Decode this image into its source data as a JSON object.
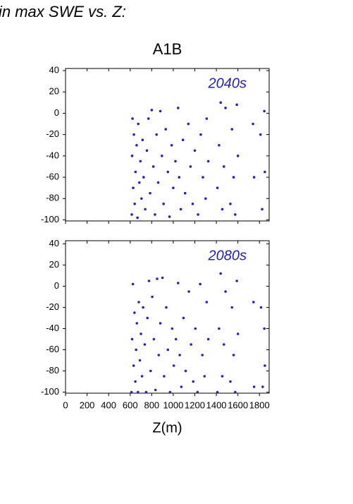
{
  "page_title": "in max SWE vs. Z:",
  "chart_data": [
    {
      "type": "scatter",
      "title": "A1B",
      "annotation": "2040s",
      "color": "#2222bb",
      "xlim": [
        0,
        1890
      ],
      "ylim": [
        -101,
        42
      ],
      "yticks": [
        -100,
        -80,
        -60,
        -40,
        -20,
        0,
        20,
        40
      ],
      "x": [
        615,
        618,
        622,
        628,
        635,
        642,
        650,
        660,
        668,
        675,
        685,
        695,
        705,
        715,
        725,
        740,
        755,
        770,
        785,
        800,
        815,
        830,
        845,
        860,
        880,
        895,
        910,
        930,
        950,
        965,
        985,
        1000,
        1020,
        1045,
        1055,
        1070,
        1090,
        1110,
        1140,
        1160,
        1180,
        1200,
        1230,
        1255,
        1275,
        1300,
        1310,
        1325,
        1410,
        1425,
        1440,
        1455,
        1470,
        1485,
        1530,
        1545,
        1560,
        1575,
        1590,
        1600,
        1740,
        1750,
        1810,
        1825,
        1845,
        1850
      ],
      "y": [
        -95,
        -40,
        -5,
        -70,
        -20,
        -85,
        -55,
        -30,
        -98,
        -10,
        -65,
        -45,
        -80,
        -25,
        -60,
        -90,
        -35,
        -5,
        -75,
        3,
        -50,
        -95,
        -20,
        -65,
        2,
        -40,
        -85,
        -15,
        -55,
        -97,
        -30,
        -70,
        -45,
        5,
        -60,
        -90,
        -25,
        -75,
        -10,
        -50,
        -85,
        -35,
        -95,
        -20,
        -60,
        -80,
        -5,
        -45,
        -70,
        -30,
        10,
        -90,
        -50,
        5,
        -85,
        -15,
        -60,
        -95,
        8,
        -40,
        -10,
        -60,
        -20,
        -90,
        2,
        -55
      ]
    },
    {
      "type": "scatter",
      "annotation": "2080s",
      "color": "#2222bb",
      "xlabel": "Z(m)",
      "xlim": [
        0,
        1890
      ],
      "ylim": [
        -101,
        43
      ],
      "yticks": [
        -100,
        -80,
        -60,
        -40,
        -20,
        0,
        20,
        40
      ],
      "xticks": [
        0,
        200,
        400,
        600,
        800,
        1000,
        1200,
        1400,
        1600,
        1800
      ],
      "x": [
        612,
        618,
        625,
        632,
        640,
        648,
        655,
        662,
        672,
        680,
        690,
        700,
        710,
        720,
        735,
        748,
        760,
        775,
        790,
        805,
        820,
        835,
        850,
        865,
        880,
        900,
        915,
        935,
        950,
        970,
        990,
        1005,
        1025,
        1045,
        1060,
        1075,
        1095,
        1115,
        1145,
        1165,
        1185,
        1205,
        1225,
        1250,
        1270,
        1290,
        1310,
        1325,
        1410,
        1425,
        1440,
        1455,
        1470,
        1485,
        1530,
        1545,
        1560,
        1575,
        1590,
        1600,
        1745,
        1750,
        1815,
        1830,
        1845,
        1850
      ],
      "y": [
        -100,
        -50,
        2,
        -75,
        -25,
        -90,
        -60,
        -35,
        -100,
        -15,
        -70,
        -45,
        -85,
        -20,
        -55,
        -100,
        -30,
        5,
        -80,
        -10,
        -50,
        -98,
        7,
        -65,
        -35,
        8,
        -85,
        -20,
        -60,
        -100,
        -40,
        -75,
        -50,
        3,
        -65,
        -95,
        -30,
        -80,
        -5,
        -55,
        -90,
        -40,
        -100,
        2,
        -65,
        -85,
        -15,
        -50,
        -100,
        -40,
        12,
        -85,
        -55,
        -5,
        -90,
        -20,
        -65,
        -100,
        5,
        -45,
        -15,
        -95,
        -20,
        -95,
        -40,
        -75
      ]
    }
  ]
}
